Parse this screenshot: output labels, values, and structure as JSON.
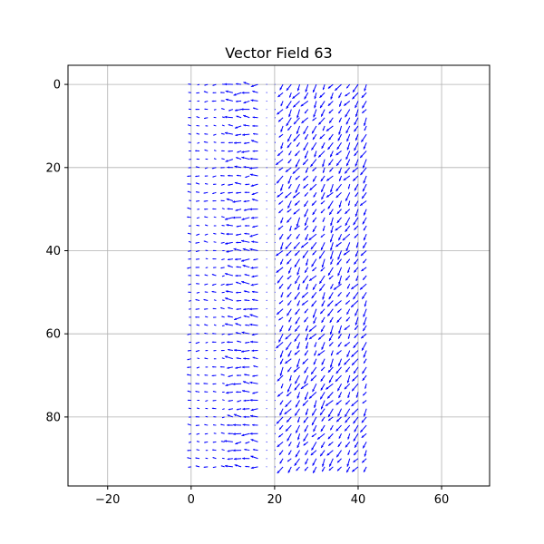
{
  "chart_data": {
    "type": "quiver",
    "title": "Vector Field 63",
    "xlabel": "",
    "ylabel": "",
    "xlim": [
      -29.5,
      71.5
    ],
    "ylim": [
      96.6,
      -4.6
    ],
    "y_inverted": true,
    "grid": true,
    "x_ticks": [
      -20,
      0,
      20,
      40,
      60
    ],
    "y_ticks": [
      0,
      20,
      40,
      60,
      80
    ],
    "x_tick_labels": [
      "−20",
      "0",
      "20",
      "40",
      "60"
    ],
    "y_tick_labels": [
      "0",
      "20",
      "40",
      "60",
      "80"
    ],
    "grid_x": [
      0,
      42
    ],
    "grid_y": [
      0,
      92
    ],
    "grid_step": 2,
    "arrow_color": "#0000ff",
    "grid_color": "#b0b0b0",
    "field_regions": [
      {
        "name": "left band",
        "x_range": [
          0,
          10
        ],
        "direction_deg_cw_from_right": 180,
        "magnitude": 0.45
      },
      {
        "name": "diagonal strip",
        "x_range": [
          10,
          18
        ],
        "direction_deg_cw_from_right": 180,
        "magnitude": 0.9
      },
      {
        "name": "central gap",
        "x_range": [
          18,
          22
        ],
        "direction_deg_cw_from_right": 0,
        "magnitude": 0.1
      },
      {
        "name": "right band",
        "x_range": [
          22,
          42
        ],
        "direction_deg_cw_from_right": 125,
        "magnitude": 1.0
      }
    ]
  }
}
